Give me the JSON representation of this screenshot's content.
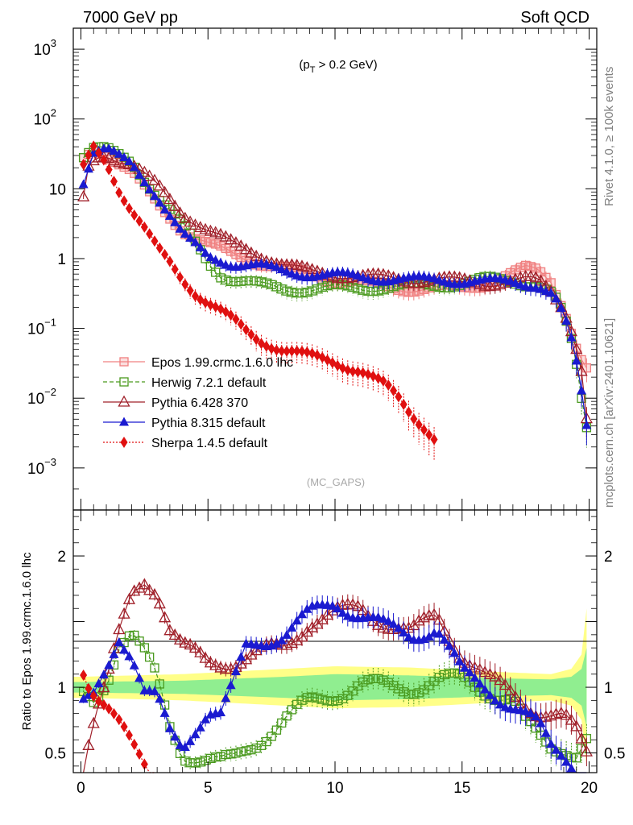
{
  "header": {
    "left": "7000 GeV pp",
    "right": "Soft QCD",
    "side_top": "Rivet 4.1.0, ≥ 100k events",
    "side_bottom": "mcplots.cern.ch [arXiv:2401.10621]"
  },
  "chart_data": [
    {
      "type": "line",
      "panel": "main",
      "annotation": "(p_T > 0.2 GeV)",
      "watermark": "(MC_GAPS)",
      "yscale": "log",
      "ylim": [
        0.00025,
        2000
      ],
      "xlim": [
        -0.3,
        20.3
      ],
      "yticks": [
        {
          "v": 0.001,
          "base": "10",
          "exp": "−3"
        },
        {
          "v": 0.01,
          "base": "10",
          "exp": "−2"
        },
        {
          "v": 0.1,
          "base": "10",
          "exp": "−1"
        },
        {
          "v": 1,
          "base": "1",
          "exp": ""
        },
        {
          "v": 10,
          "base": "10",
          "exp": ""
        },
        {
          "v": 100,
          "base": "10",
          "exp": "2"
        },
        {
          "v": 1000,
          "base": "10",
          "exp": "3"
        }
      ],
      "x_step": 0.2,
      "series": [
        {
          "name": "Epos 1.99.crmc.1.6.0 lhc",
          "color": "#f08080",
          "marker": "cross-square",
          "dash": "",
          "knots": [
            [
              0.1,
              27
            ],
            [
              0.5,
              37
            ],
            [
              1,
              32
            ],
            [
              2,
              17
            ],
            [
              3,
              6
            ],
            [
              4,
              2.6
            ],
            [
              5,
              1.6
            ],
            [
              6,
              1.15
            ],
            [
              7,
              0.9
            ],
            [
              8,
              0.72
            ],
            [
              9,
              0.6
            ],
            [
              10,
              0.5
            ],
            [
              11,
              0.45
            ],
            [
              12,
              0.4
            ],
            [
              13,
              0.37
            ],
            [
              14,
              0.37
            ],
            [
              15,
              0.38
            ],
            [
              16,
              0.45
            ],
            [
              17,
              0.6
            ],
            [
              17.5,
              0.72
            ],
            [
              18,
              0.7
            ],
            [
              18.5,
              0.5
            ],
            [
              19,
              0.2
            ],
            [
              19.3,
              0.09
            ],
            [
              19.6,
              0.04
            ],
            [
              19.9,
              0.025
            ]
          ]
        },
        {
          "name": "Herwig 7.2.1 default",
          "color": "#4a9a1e",
          "marker": "square-open",
          "dash": "5,3",
          "knots": [
            [
              0.1,
              30
            ],
            [
              0.5,
              38
            ],
            [
              1,
              36
            ],
            [
              2,
              24
            ],
            [
              2.5,
              14
            ],
            [
              3,
              8
            ],
            [
              4,
              3
            ],
            [
              5,
              0.9
            ],
            [
              5.5,
              0.6
            ],
            [
              6,
              0.5
            ],
            [
              7,
              0.42
            ],
            [
              8,
              0.37
            ],
            [
              9,
              0.36
            ],
            [
              10,
              0.38
            ],
            [
              11,
              0.38
            ],
            [
              12,
              0.39
            ],
            [
              13,
              0.4
            ],
            [
              14,
              0.42
            ],
            [
              15,
              0.45
            ],
            [
              16,
              0.5
            ],
            [
              17,
              0.48
            ],
            [
              18,
              0.42
            ],
            [
              18.6,
              0.3
            ],
            [
              19,
              0.15
            ],
            [
              19.4,
              0.05
            ],
            [
              19.7,
              0.01
            ],
            [
              19.9,
              0.004
            ]
          ]
        },
        {
          "name": "Pythia 6.428 370",
          "color": "#a0202a",
          "marker": "triangle-open",
          "dash": "",
          "knots": [
            [
              0.1,
              7
            ],
            [
              0.3,
              20
            ],
            [
              0.6,
              28
            ],
            [
              1,
              32
            ],
            [
              2,
              22
            ],
            [
              3,
              11
            ],
            [
              4,
              4.5
            ],
            [
              5,
              2.5
            ],
            [
              6,
              1.6
            ],
            [
              7,
              1.15
            ],
            [
              8,
              0.8
            ],
            [
              9,
              0.65
            ],
            [
              10,
              0.6
            ],
            [
              11,
              0.55
            ],
            [
              12,
              0.53
            ],
            [
              13,
              0.5
            ],
            [
              14,
              0.5
            ],
            [
              15,
              0.48
            ],
            [
              16,
              0.45
            ],
            [
              17,
              0.47
            ],
            [
              17.6,
              0.5
            ],
            [
              18,
              0.48
            ],
            [
              18.5,
              0.35
            ],
            [
              19,
              0.2
            ],
            [
              19.4,
              0.08
            ],
            [
              19.7,
              0.025
            ],
            [
              19.9,
              0.005
            ]
          ]
        },
        {
          "name": "Pythia 8.315 default",
          "color": "#1a1ad0",
          "marker": "triangle-filled",
          "dash": "",
          "knots": [
            [
              0.1,
              13
            ],
            [
              0.5,
              34
            ],
            [
              1,
              36
            ],
            [
              2,
              22
            ],
            [
              3,
              8
            ],
            [
              4,
              2.2
            ],
            [
              5,
              1.05
            ],
            [
              6,
              0.85
            ],
            [
              7,
              0.78
            ],
            [
              8,
              0.65
            ],
            [
              9,
              0.6
            ],
            [
              10,
              0.58
            ],
            [
              11,
              0.54
            ],
            [
              12,
              0.52
            ],
            [
              13,
              0.5
            ],
            [
              14,
              0.5
            ],
            [
              15,
              0.48
            ],
            [
              16,
              0.47
            ],
            [
              17,
              0.46
            ],
            [
              18,
              0.42
            ],
            [
              18.6,
              0.3
            ],
            [
              19,
              0.15
            ],
            [
              19.4,
              0.05
            ],
            [
              19.7,
              0.012
            ],
            [
              19.9,
              0.004
            ]
          ]
        },
        {
          "name": "Sherpa 1.4.5 default",
          "color": "#e01010",
          "marker": "diamond-filled",
          "dash": "2,2",
          "xmax": 14,
          "knots": [
            [
              0.1,
              20
            ],
            [
              0.5,
              38
            ],
            [
              1,
              24
            ],
            [
              1.5,
              10
            ],
            [
              2,
              5
            ],
            [
              2.5,
              2.7
            ],
            [
              3,
              1.4
            ],
            [
              3.5,
              0.85
            ],
            [
              4,
              0.5
            ],
            [
              4.5,
              0.33
            ],
            [
              5,
              0.24
            ],
            [
              5.5,
              0.18
            ],
            [
              6,
              0.13
            ],
            [
              6.5,
              0.09
            ],
            [
              7,
              0.068
            ],
            [
              8,
              0.05
            ],
            [
              9,
              0.04
            ],
            [
              10,
              0.033
            ],
            [
              11,
              0.025
            ],
            [
              12,
              0.015
            ],
            [
              12.5,
              0.01
            ],
            [
              13,
              0.006
            ],
            [
              13.5,
              0.004
            ],
            [
              14,
              0.0025
            ]
          ]
        }
      ]
    },
    {
      "type": "line",
      "panel": "ratio",
      "ylabel": "Ratio to Epos 1.99.crmc.1.6.0 lhc",
      "ylim": [
        0.35,
        2.35
      ],
      "xlim": [
        -0.3,
        20.3
      ],
      "yticks": [
        "0.5",
        "1",
        "2"
      ],
      "xticks": [
        "0",
        "5",
        "10",
        "15",
        "20"
      ],
      "band_yellow_halfwidth": [
        [
          0,
          0.08
        ],
        [
          4,
          0.1
        ],
        [
          8,
          0.14
        ],
        [
          10,
          0.16
        ],
        [
          13,
          0.15
        ],
        [
          16,
          0.12
        ],
        [
          18.5,
          0.1
        ],
        [
          19.3,
          0.14
        ],
        [
          19.7,
          0.25
        ],
        [
          19.9,
          0.6
        ]
      ],
      "band_green_halfwidth": [
        [
          0,
          0.04
        ],
        [
          4,
          0.05
        ],
        [
          8,
          0.08
        ],
        [
          10,
          0.1
        ],
        [
          13,
          0.09
        ],
        [
          16,
          0.07
        ],
        [
          18.5,
          0.06
        ],
        [
          19.3,
          0.08
        ],
        [
          19.7,
          0.14
        ],
        [
          19.9,
          0.3
        ]
      ],
      "series": [
        {
          "name": "Herwig 7.2.1 default",
          "color": "#4a9a1e",
          "marker": "square-open",
          "dash": "5,3",
          "knots": [
            [
              0.1,
              0.92
            ],
            [
              0.5,
              0.88
            ],
            [
              1,
              1.05
            ],
            [
              1.5,
              1.35
            ],
            [
              2,
              1.42
            ],
            [
              2.5,
              1.25
            ],
            [
              3,
              1.05
            ],
            [
              3.5,
              0.7
            ],
            [
              4,
              0.5
            ],
            [
              5,
              0.45
            ],
            [
              5.5,
              0.42
            ],
            [
              6,
              0.44
            ],
            [
              6.5,
              0.52
            ],
            [
              7,
              0.6
            ],
            [
              8,
              0.75
            ],
            [
              9,
              0.88
            ],
            [
              10,
              0.95
            ],
            [
              11,
              1.02
            ],
            [
              12,
              1.0
            ],
            [
              13,
              1.0
            ],
            [
              14,
              1.05
            ],
            [
              15,
              1.05
            ],
            [
              16,
              0.98
            ],
            [
              17,
              0.9
            ],
            [
              17.5,
              0.72
            ],
            [
              18,
              0.62
            ],
            [
              18.5,
              0.55
            ],
            [
              19,
              0.55
            ],
            [
              19.5,
              0.5
            ],
            [
              19.9,
              0.6
            ]
          ]
        },
        {
          "name": "Pythia 6.428 370",
          "color": "#a0202a",
          "marker": "triangle-open",
          "dash": "",
          "knots": [
            [
              0.1,
              0.38
            ],
            [
              0.3,
              0.6
            ],
            [
              0.6,
              0.82
            ],
            [
              1,
              1.02
            ],
            [
              1.5,
              1.38
            ],
            [
              2,
              1.7
            ],
            [
              2.5,
              1.82
            ],
            [
              3,
              1.75
            ],
            [
              3.5,
              1.45
            ],
            [
              4,
              1.3
            ],
            [
              5,
              1.18
            ],
            [
              6,
              1.2
            ],
            [
              7,
              1.25
            ],
            [
              8,
              1.3
            ],
            [
              9,
              1.5
            ],
            [
              10,
              1.55
            ],
            [
              11,
              1.6
            ],
            [
              12,
              1.5
            ],
            [
              13,
              1.4
            ],
            [
              14,
              1.55
            ],
            [
              15,
              1.25
            ],
            [
              16,
              1.05
            ],
            [
              17,
              0.95
            ],
            [
              18,
              0.82
            ],
            [
              18.5,
              0.78
            ],
            [
              19,
              0.75
            ],
            [
              19.5,
              0.65
            ],
            [
              19.9,
              0.5
            ]
          ]
        },
        {
          "name": "Pythia 8.315 default",
          "color": "#1a1ad0",
          "marker": "triangle-filled",
          "dash": "",
          "knots": [
            [
              0.1,
              0.85
            ],
            [
              0.5,
              0.92
            ],
            [
              1,
              1.15
            ],
            [
              1.5,
              1.4
            ],
            [
              2,
              1.25
            ],
            [
              2.5,
              0.95
            ],
            [
              3,
              0.9
            ],
            [
              3.5,
              0.65
            ],
            [
              4,
              0.55
            ],
            [
              4.5,
              0.7
            ],
            [
              5,
              0.82
            ],
            [
              5.5,
              0.78
            ],
            [
              6,
              1.0
            ],
            [
              6.5,
              1.3
            ],
            [
              7,
              1.35
            ],
            [
              8,
              1.4
            ],
            [
              9,
              1.55
            ],
            [
              10,
              1.65
            ],
            [
              11,
              1.55
            ],
            [
              12,
              1.45
            ],
            [
              13,
              1.4
            ],
            [
              14,
              1.45
            ],
            [
              15,
              1.1
            ],
            [
              16,
              1.0
            ],
            [
              17,
              0.85
            ],
            [
              18,
              0.7
            ],
            [
              18.5,
              0.55
            ],
            [
              19,
              0.5
            ],
            [
              19.5,
              0.4
            ],
            [
              19.9,
              0.35
            ]
          ]
        },
        {
          "name": "Sherpa 1.4.5 default",
          "color": "#e01010",
          "marker": "diamond-filled",
          "dash": "2,2",
          "knots": [
            [
              0.1,
              1.15
            ],
            [
              0.3,
              1.05
            ],
            [
              0.6,
              0.95
            ],
            [
              1,
              0.85
            ],
            [
              1.5,
              0.7
            ],
            [
              2,
              0.55
            ],
            [
              2.5,
              0.42
            ],
            [
              3,
              0.3
            ]
          ]
        }
      ]
    }
  ]
}
